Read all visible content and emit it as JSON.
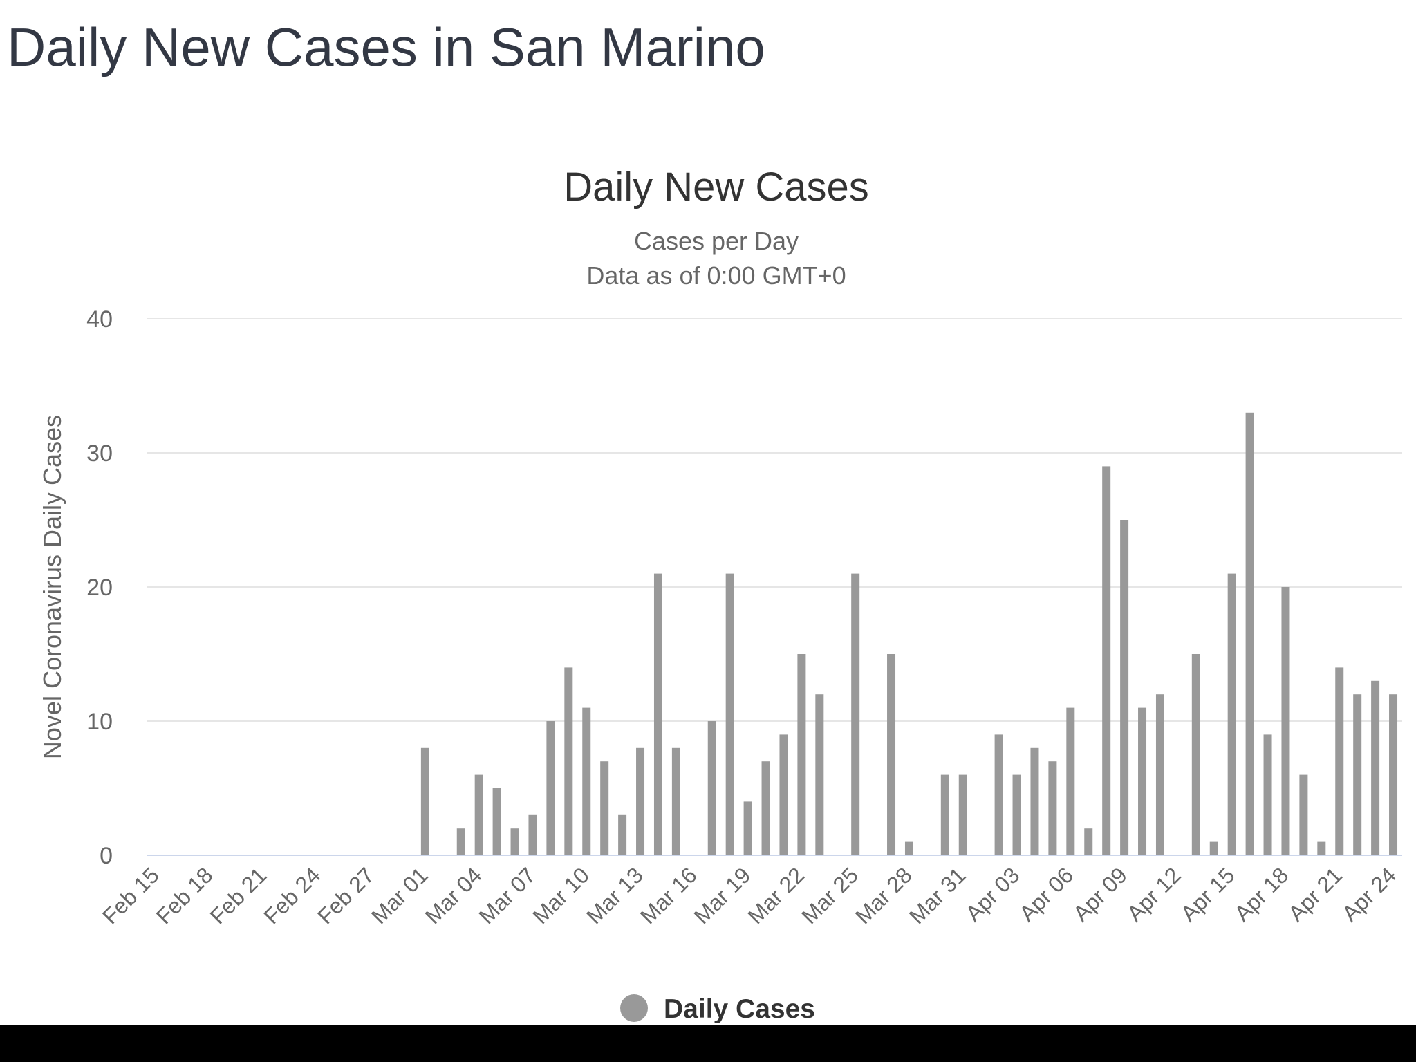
{
  "page_title": "Daily New Cases in San Marino",
  "chart_data": {
    "type": "bar",
    "title": "Daily New Cases",
    "subtitle": [
      "Cases per Day",
      "Data as of 0:00 GMT+0"
    ],
    "y_label": "Novel Coronavirus Daily Cases",
    "categories": [
      "Feb 15",
      null,
      null,
      "Feb 18",
      null,
      null,
      "Feb 21",
      null,
      null,
      "Feb 24",
      null,
      null,
      "Feb 27",
      null,
      null,
      "Mar 01",
      null,
      null,
      "Mar 04",
      null,
      null,
      "Mar 07",
      null,
      null,
      "Mar 10",
      null,
      null,
      "Mar 13",
      null,
      null,
      "Mar 16",
      null,
      null,
      "Mar 19",
      null,
      null,
      "Mar 22",
      null,
      null,
      "Mar 25",
      null,
      null,
      "Mar 28",
      null,
      null,
      "Mar 31",
      null,
      null,
      "Apr 03",
      null,
      null,
      "Apr 06",
      null,
      null,
      "Apr 09",
      null,
      null,
      "Apr 12",
      null,
      null,
      "Apr 15",
      null,
      null,
      "Apr 18",
      null,
      null,
      "Apr 21",
      null,
      null,
      "Apr 24"
    ],
    "series": [
      {
        "name": "Daily Cases",
        "color": "#999999",
        "values": [
          0,
          0,
          0,
          0,
          0,
          0,
          0,
          0,
          0,
          0,
          0,
          0,
          0,
          0,
          0,
          8,
          0,
          2,
          6,
          5,
          2,
          3,
          10,
          14,
          11,
          7,
          3,
          8,
          21,
          8,
          0,
          10,
          21,
          4,
          7,
          9,
          15,
          12,
          0,
          21,
          0,
          15,
          1,
          0,
          6,
          6,
          0,
          9,
          6,
          8,
          7,
          11,
          2,
          29,
          25,
          11,
          12,
          0,
          15,
          1,
          21,
          33,
          9,
          20,
          6,
          1,
          14,
          12,
          13,
          12
        ]
      }
    ],
    "ylim": [
      0,
      40
    ],
    "yticks": [
      0,
      10,
      20,
      30,
      40
    ],
    "grid": true
  }
}
